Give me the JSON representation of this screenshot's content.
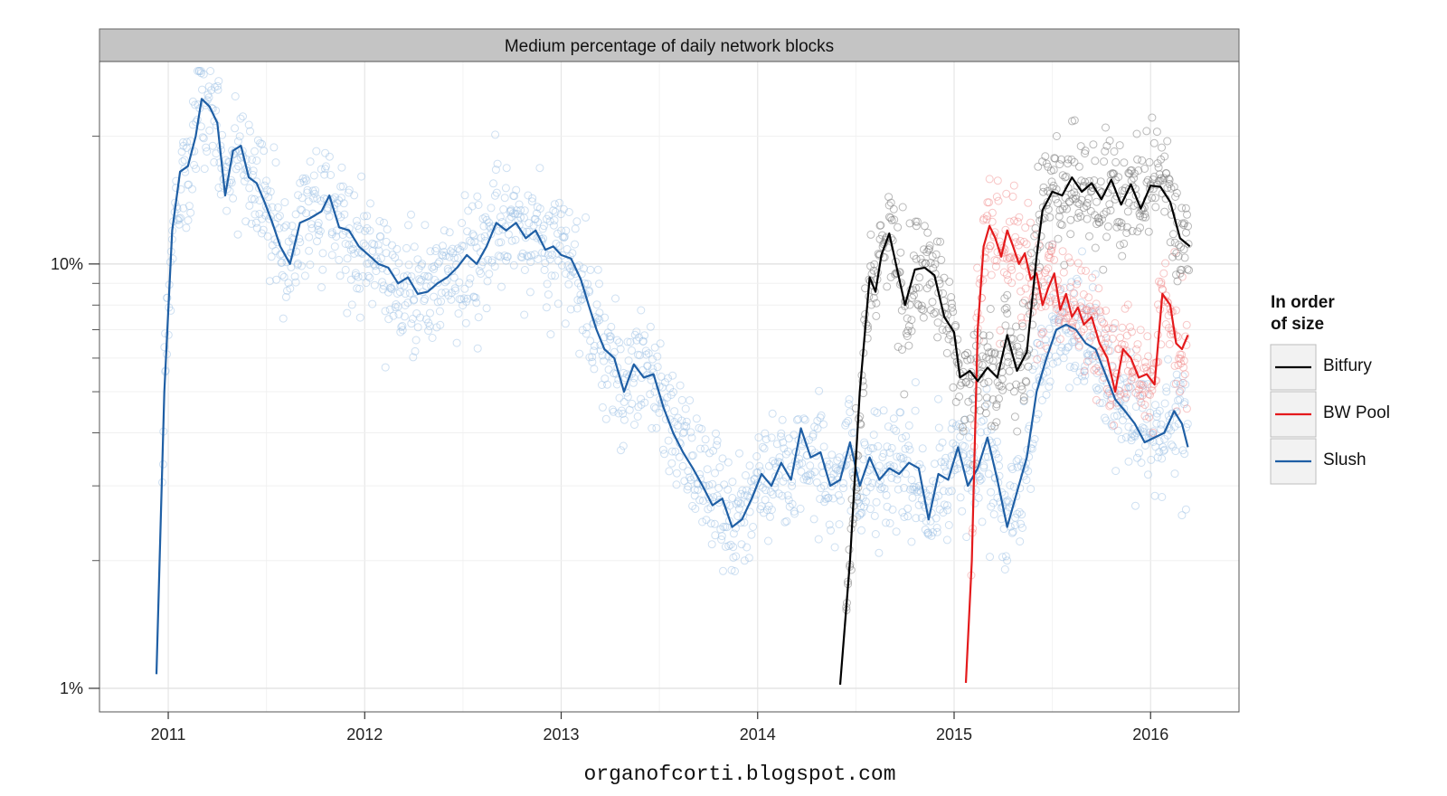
{
  "chart_data": {
    "type": "line",
    "title": "Medium percentage of daily network blocks",
    "xlabel": "",
    "ylabel": "",
    "y_scale": "log10",
    "ylim": [
      0.88,
      30
    ],
    "xlim": [
      2010.65,
      2016.45
    ],
    "x_ticks": [
      2011,
      2012,
      2013,
      2014,
      2015,
      2016
    ],
    "x_tick_labels": [
      "2011",
      "2012",
      "2013",
      "2014",
      "2015",
      "2016"
    ],
    "y_ticks": [
      1,
      10
    ],
    "y_tick_labels": [
      "1%",
      "10%"
    ],
    "y_minor_ticks": [
      2,
      3,
      4,
      5,
      6,
      7,
      8,
      9,
      20
    ],
    "grid": true,
    "legend": {
      "title_lines": [
        "In order",
        "of size"
      ],
      "position": "right",
      "entries": [
        "Bitfury",
        "BW Pool",
        "Slush"
      ]
    },
    "credit": "organofcorti.blogspot.com",
    "series": [
      {
        "name": "Bitfury",
        "color": "#000000",
        "x": [
          2014.42,
          2014.47,
          2014.52,
          2014.57,
          2014.6,
          2014.63,
          2014.67,
          2014.7,
          2014.75,
          2014.8,
          2014.85,
          2014.9,
          2014.95,
          2015.0,
          2015.03,
          2015.08,
          2015.12,
          2015.17,
          2015.22,
          2015.27,
          2015.32,
          2015.37,
          2015.42,
          2015.45,
          2015.5,
          2015.55,
          2015.6,
          2015.65,
          2015.7,
          2015.75,
          2015.8,
          2015.85,
          2015.9,
          2015.95,
          2016.0,
          2016.05,
          2016.1,
          2016.15,
          2016.2
        ],
        "y": [
          1.02,
          2.0,
          5.0,
          9.3,
          8.6,
          10.5,
          11.8,
          10.2,
          8.0,
          9.7,
          9.8,
          9.4,
          7.5,
          6.9,
          5.4,
          5.6,
          5.3,
          5.7,
          5.4,
          6.8,
          5.6,
          6.2,
          10.4,
          13.4,
          14.8,
          14.5,
          16.0,
          14.8,
          15.5,
          14.2,
          15.8,
          13.8,
          15.4,
          13.5,
          15.3,
          15.2,
          14.0,
          11.5,
          11.0
        ],
        "scatter_spread": 1.3
      },
      {
        "name": "BW Pool",
        "color": "#e41a1c",
        "x": [
          2015.06,
          2015.09,
          2015.12,
          2015.15,
          2015.18,
          2015.21,
          2015.24,
          2015.27,
          2015.3,
          2015.33,
          2015.36,
          2015.39,
          2015.42,
          2015.45,
          2015.48,
          2015.51,
          2015.54,
          2015.57,
          2015.6,
          2015.63,
          2015.66,
          2015.7,
          2015.74,
          2015.78,
          2015.82,
          2015.86,
          2015.9,
          2015.94,
          2015.98,
          2016.02,
          2016.06,
          2016.1,
          2016.13,
          2016.16,
          2016.19
        ],
        "y": [
          1.03,
          2.0,
          7.0,
          11.0,
          12.3,
          11.5,
          10.4,
          12.0,
          11.0,
          10.0,
          10.6,
          9.2,
          9.5,
          8.0,
          8.8,
          9.5,
          7.8,
          8.5,
          7.5,
          7.9,
          7.2,
          7.5,
          6.5,
          6.0,
          5.0,
          6.3,
          6.0,
          5.4,
          5.5,
          5.2,
          8.5,
          8.0,
          6.5,
          6.3,
          6.8
        ],
        "scatter_spread": 1.35
      },
      {
        "name": "Slush",
        "color": "#1f5fa5",
        "x": [
          2010.94,
          2010.98,
          2011.02,
          2011.06,
          2011.1,
          2011.14,
          2011.17,
          2011.21,
          2011.25,
          2011.29,
          2011.33,
          2011.37,
          2011.41,
          2011.45,
          2011.49,
          2011.53,
          2011.57,
          2011.62,
          2011.67,
          2011.72,
          2011.78,
          2011.82,
          2011.87,
          2011.92,
          2011.97,
          2012.02,
          2012.07,
          2012.12,
          2012.17,
          2012.22,
          2012.27,
          2012.32,
          2012.37,
          2012.42,
          2012.47,
          2012.52,
          2012.57,
          2012.62,
          2012.67,
          2012.72,
          2012.77,
          2012.82,
          2012.87,
          2012.92,
          2012.96,
          2013.0,
          2013.05,
          2013.1,
          2013.14,
          2013.18,
          2013.22,
          2013.27,
          2013.32,
          2013.37,
          2013.42,
          2013.47,
          2013.52,
          2013.57,
          2013.62,
          2013.67,
          2013.72,
          2013.77,
          2013.82,
          2013.87,
          2013.92,
          2013.97,
          2014.02,
          2014.07,
          2014.12,
          2014.17,
          2014.22,
          2014.27,
          2014.32,
          2014.37,
          2014.42,
          2014.47,
          2014.52,
          2014.57,
          2014.62,
          2014.67,
          2014.72,
          2014.77,
          2014.82,
          2014.87,
          2014.92,
          2014.97,
          2015.02,
          2015.07,
          2015.12,
          2015.17,
          2015.22,
          2015.27,
          2015.32,
          2015.37,
          2015.42,
          2015.47,
          2015.52,
          2015.57,
          2015.62,
          2015.67,
          2015.72,
          2015.77,
          2015.82,
          2015.87,
          2015.92,
          2015.97,
          2016.02,
          2016.07,
          2016.12,
          2016.16,
          2016.19
        ],
        "y": [
          1.08,
          5.0,
          12.0,
          16.5,
          17.0,
          20.0,
          24.5,
          23.5,
          21.5,
          14.5,
          18.5,
          19.0,
          16.0,
          15.5,
          14.0,
          12.5,
          11.0,
          10.0,
          12.5,
          12.8,
          13.3,
          14.5,
          12.2,
          12.0,
          11.0,
          10.5,
          10.0,
          9.8,
          9.0,
          9.3,
          8.5,
          8.6,
          9.0,
          9.3,
          9.8,
          10.5,
          10.0,
          11.0,
          12.5,
          12.0,
          12.5,
          11.5,
          12.0,
          10.8,
          11.0,
          10.5,
          10.3,
          9.2,
          8.0,
          7.0,
          6.3,
          6.0,
          5.0,
          5.8,
          5.4,
          5.5,
          4.6,
          4.0,
          3.6,
          3.3,
          3.0,
          2.7,
          2.8,
          2.4,
          2.5,
          2.8,
          3.2,
          3.0,
          3.4,
          3.1,
          4.1,
          3.5,
          3.6,
          3.0,
          3.1,
          3.8,
          3.0,
          3.5,
          3.1,
          3.3,
          3.2,
          3.4,
          3.3,
          2.5,
          3.2,
          3.1,
          3.7,
          3.0,
          3.3,
          3.9,
          3.1,
          2.4,
          2.9,
          3.5,
          5.0,
          6.0,
          7.0,
          7.2,
          7.0,
          6.5,
          6.3,
          5.5,
          4.8,
          4.5,
          4.2,
          3.8,
          3.9,
          4.0,
          4.5,
          4.2,
          3.7
        ],
        "scatter_spread": 1.35
      }
    ]
  }
}
